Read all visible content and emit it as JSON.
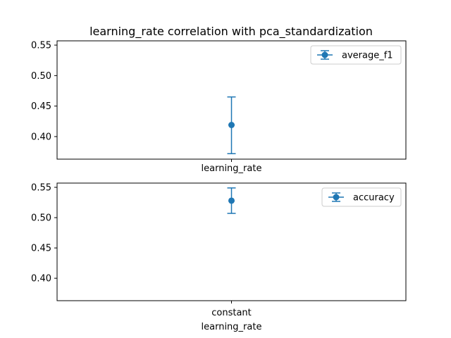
{
  "chart_data": {
    "type": "scatter",
    "title": "learning_rate correlation with pca_standardization",
    "colors": {
      "series": "#1f77b4",
      "axes": "#000000",
      "legend_border": "#cccccc"
    },
    "panels": [
      {
        "series_name": "average_f1",
        "legend_position": "top-right",
        "x_label": "learning_rate",
        "categories": [
          ""
        ],
        "y": [
          0.419
        ],
        "y_err_low": [
          0.372
        ],
        "y_err_high": [
          0.465
        ],
        "ylim": [
          0.363,
          0.557
        ],
        "yticks": [
          0.4,
          0.45,
          0.5,
          0.55
        ],
        "ytick_labels": [
          "0.40",
          "0.45",
          "0.50",
          "0.55"
        ]
      },
      {
        "series_name": "accuracy",
        "legend_position": "top-right",
        "x_label": "learning_rate",
        "categories": [
          "constant"
        ],
        "y": [
          0.528
        ],
        "y_err_low": [
          0.507
        ],
        "y_err_high": [
          0.549
        ],
        "ylim": [
          0.363,
          0.557
        ],
        "yticks": [
          0.4,
          0.45,
          0.5,
          0.55
        ],
        "ytick_labels": [
          "0.40",
          "0.45",
          "0.50",
          "0.55"
        ]
      }
    ]
  }
}
